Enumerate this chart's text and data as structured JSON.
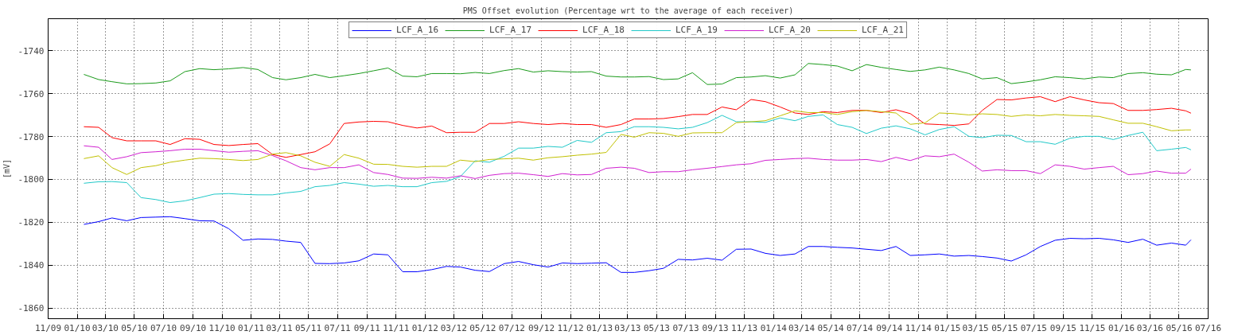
{
  "chart_data": {
    "type": "line",
    "title": "PMS Offset evolution (Percentage wrt to the average of each receiver)",
    "ylabel": "[mV]",
    "x": [
      "2010-01-15",
      "2010-02-15",
      "2010-03-15",
      "2010-04-15",
      "2010-05-15",
      "2010-06-15",
      "2010-07-15",
      "2010-08-15",
      "2010-09-15",
      "2010-10-15",
      "2010-11-15",
      "2010-12-15",
      "2011-01-15",
      "2011-02-15",
      "2011-03-15",
      "2011-04-15",
      "2011-05-15",
      "2011-06-15",
      "2011-07-15",
      "2011-08-15",
      "2011-09-15",
      "2011-10-15",
      "2011-11-15",
      "2011-12-15",
      "2012-01-15",
      "2012-02-15",
      "2012-03-15",
      "2012-04-15",
      "2012-05-15",
      "2012-06-15",
      "2012-07-15",
      "2012-08-15",
      "2012-09-15",
      "2012-10-15",
      "2012-11-15",
      "2012-12-15",
      "2013-01-15",
      "2013-02-15",
      "2013-03-15",
      "2013-04-15",
      "2013-05-15",
      "2013-06-15",
      "2013-07-15",
      "2013-08-15",
      "2013-09-15",
      "2013-10-15",
      "2013-11-15",
      "2013-12-15",
      "2014-01-15",
      "2014-02-15",
      "2014-03-15",
      "2014-04-15",
      "2014-05-15",
      "2014-06-15",
      "2014-07-15",
      "2014-08-15",
      "2014-09-15",
      "2014-10-15",
      "2014-11-15",
      "2014-12-15",
      "2015-01-15",
      "2015-02-15",
      "2015-03-15",
      "2015-04-15",
      "2015-05-15",
      "2015-06-15",
      "2015-07-15",
      "2015-08-15",
      "2015-09-15",
      "2015-10-15",
      "2015-11-15",
      "2015-12-15",
      "2016-01-15",
      "2016-02-15",
      "2016-03-15",
      "2016-04-15",
      "2016-05-15",
      "2016-05-26"
    ],
    "series": [
      {
        "name": "LCF_A_16",
        "color": "#0000ff",
        "values": [
          -1821,
          -1819.7,
          -1818,
          -1819.3,
          -1817.8,
          -1817.6,
          -1817.4,
          -1818.3,
          -1819.3,
          -1819.4,
          -1823,
          -1828.4,
          -1827.8,
          -1828,
          -1828.8,
          -1829.4,
          -1839.2,
          -1839.3,
          -1839,
          -1838,
          -1834.8,
          -1835.2,
          -1843.1,
          -1843.1,
          -1842.1,
          -1840.6,
          -1840.9,
          -1842.4,
          -1843,
          -1839.3,
          -1838.3,
          -1839.8,
          -1840.9,
          -1839,
          -1839.3,
          -1839.1,
          -1838.9,
          -1843.4,
          -1843.4,
          -1842.6,
          -1841.5,
          -1837.3,
          -1837.6,
          -1836.8,
          -1837.7,
          -1832.6,
          -1832.5,
          -1834.5,
          -1835.5,
          -1834.8,
          -1831.3,
          -1831.3,
          -1831.7,
          -1832,
          -1832.6,
          -1833.2,
          -1831.3,
          -1835.5,
          -1835.2,
          -1834.8,
          -1835.8,
          -1835.5,
          -1836,
          -1836.7,
          -1838.1,
          -1835.2,
          -1831.3,
          -1828.4,
          -1827.5,
          -1827.7,
          -1827.5,
          -1828.2,
          -1829.4,
          -1827.9,
          -1830.7,
          -1829.7,
          -1830.7,
          -1828.2
        ]
      },
      {
        "name": "LCF_A_17",
        "color": "#1a9a1a",
        "values": [
          -1751,
          -1753.4,
          -1754.4,
          -1755.4,
          -1755.3,
          -1755,
          -1754,
          -1749.7,
          -1748.3,
          -1748.8,
          -1748.4,
          -1747.8,
          -1748.7,
          -1752.5,
          -1753.5,
          -1752.5,
          -1751,
          -1752.5,
          -1751.6,
          -1750.6,
          -1749.3,
          -1748,
          -1751.8,
          -1752.1,
          -1750.6,
          -1750.6,
          -1750.7,
          -1750.1,
          -1750.6,
          -1749.2,
          -1748.3,
          -1749.9,
          -1749.3,
          -1749.7,
          -1749.9,
          -1749.7,
          -1751.8,
          -1752.2,
          -1752.2,
          -1752,
          -1753.4,
          -1753.1,
          -1750.2,
          -1755.7,
          -1755.5,
          -1752.5,
          -1752.2,
          -1751.6,
          -1752.7,
          -1751.2,
          -1745.9,
          -1746.4,
          -1747.1,
          -1749.3,
          -1746.4,
          -1747.7,
          -1748.7,
          -1749.6,
          -1748.9,
          -1747.6,
          -1748.9,
          -1750.6,
          -1753.1,
          -1752.5,
          -1755.3,
          -1754.5,
          -1753.5,
          -1752.1,
          -1752.5,
          -1753.1,
          -1752.2,
          -1752.5,
          -1750.6,
          -1750.2,
          -1750.9,
          -1751.2,
          -1748.7,
          -1748.9
        ]
      },
      {
        "name": "LCF_A_18",
        "color": "#ff0000",
        "values": [
          -1775.4,
          -1775.7,
          -1780.5,
          -1782,
          -1782,
          -1782,
          -1783.7,
          -1781,
          -1781.3,
          -1783.7,
          -1784.2,
          -1783.7,
          -1783.3,
          -1788.4,
          -1789.7,
          -1788.4,
          -1787.1,
          -1783.4,
          -1773.9,
          -1773.2,
          -1772.9,
          -1773.1,
          -1774.8,
          -1776,
          -1775.1,
          -1778.2,
          -1778,
          -1778,
          -1773.9,
          -1773.9,
          -1773.1,
          -1773.9,
          -1774.4,
          -1773.9,
          -1774.4,
          -1774.4,
          -1775.7,
          -1774.4,
          -1771.8,
          -1771.8,
          -1771.6,
          -1770.7,
          -1769.7,
          -1769.7,
          -1766.2,
          -1767.5,
          -1762.7,
          -1763.7,
          -1766.2,
          -1769,
          -1769.7,
          -1768.4,
          -1768.8,
          -1767.8,
          -1767.8,
          -1768.8,
          -1767.5,
          -1769.3,
          -1774.1,
          -1774.4,
          -1774.8,
          -1774.1,
          -1767.8,
          -1762.7,
          -1762.9,
          -1762,
          -1761.4,
          -1763.7,
          -1761.4,
          -1762.9,
          -1764.2,
          -1764.6,
          -1767.8,
          -1767.8,
          -1767.4,
          -1766.8,
          -1768,
          -1769.1
        ]
      },
      {
        "name": "LCF_A_19",
        "color": "#20c8c8",
        "values": [
          -1801.8,
          -1801.1,
          -1801,
          -1801.5,
          -1808.5,
          -1809.4,
          -1810.8,
          -1810,
          -1808.5,
          -1806.9,
          -1806.6,
          -1807,
          -1807.2,
          -1807.2,
          -1806.3,
          -1805.6,
          -1803.4,
          -1802.8,
          -1801.5,
          -1802.2,
          -1803.2,
          -1802.8,
          -1803.4,
          -1803.4,
          -1801.5,
          -1800.9,
          -1798.7,
          -1791.3,
          -1792,
          -1789.2,
          -1785.4,
          -1785.4,
          -1784.6,
          -1785,
          -1781.8,
          -1782.7,
          -1778.2,
          -1777.7,
          -1775.4,
          -1775.4,
          -1775.7,
          -1776.4,
          -1775.7,
          -1773.5,
          -1770.1,
          -1773.1,
          -1773.1,
          -1773.4,
          -1771.3,
          -1772.6,
          -1770.6,
          -1769.9,
          -1774.4,
          -1775.7,
          -1778.6,
          -1776.1,
          -1775,
          -1776.4,
          -1779.2,
          -1776.7,
          -1775.4,
          -1779.9,
          -1780.5,
          -1779.4,
          -1779.5,
          -1782.4,
          -1782.4,
          -1783.6,
          -1780.8,
          -1779.9,
          -1779.9,
          -1781.4,
          -1779.5,
          -1778,
          -1786.6,
          -1785.9,
          -1785.1,
          -1786.2
        ]
      },
      {
        "name": "LCF_A_20",
        "color": "#d020d0",
        "values": [
          -1784.3,
          -1785,
          -1790.7,
          -1789.4,
          -1787.5,
          -1787.1,
          -1786.6,
          -1785.9,
          -1785.9,
          -1786.6,
          -1787.3,
          -1786.9,
          -1786.6,
          -1788.9,
          -1791.3,
          -1794.5,
          -1795.5,
          -1794.5,
          -1794.5,
          -1793.2,
          -1796.8,
          -1797.7,
          -1799.4,
          -1799.5,
          -1799,
          -1799.4,
          -1798.3,
          -1799.6,
          -1798.1,
          -1797.3,
          -1797.1,
          -1797.8,
          -1798.6,
          -1797.3,
          -1797.9,
          -1797.7,
          -1794.8,
          -1794.3,
          -1794.8,
          -1796.8,
          -1796.4,
          -1796.4,
          -1795.5,
          -1794.8,
          -1794,
          -1793.2,
          -1792.7,
          -1791.1,
          -1790.7,
          -1790.3,
          -1790.1,
          -1790.7,
          -1791,
          -1791,
          -1790.7,
          -1791.7,
          -1789.7,
          -1791.2,
          -1789,
          -1789.4,
          -1788.2,
          -1792,
          -1796.1,
          -1795.5,
          -1795.9,
          -1795.9,
          -1797.3,
          -1793.2,
          -1793.9,
          -1795.2,
          -1794.5,
          -1793.9,
          -1797.8,
          -1797.3,
          -1796.1,
          -1797.1,
          -1797.1,
          -1795.2
        ]
      },
      {
        "name": "LCF_A_21",
        "color": "#c0c000",
        "values": [
          -1790.3,
          -1789,
          -1794.5,
          -1797.7,
          -1794.5,
          -1793.6,
          -1792,
          -1791,
          -1790.1,
          -1790.3,
          -1790.7,
          -1791.2,
          -1790.7,
          -1788.2,
          -1787.5,
          -1789,
          -1792,
          -1793.9,
          -1788.4,
          -1790.1,
          -1792.9,
          -1793,
          -1793.9,
          -1794.3,
          -1793.9,
          -1793.9,
          -1791,
          -1791.7,
          -1790.7,
          -1790.4,
          -1790.1,
          -1791,
          -1789.9,
          -1789.4,
          -1788.7,
          -1788.2,
          -1787.4,
          -1779,
          -1780.3,
          -1778.2,
          -1778.5,
          -1779.9,
          -1778.3,
          -1778.2,
          -1778.2,
          -1773.5,
          -1773.1,
          -1772.6,
          -1770.3,
          -1768,
          -1768.8,
          -1768.8,
          -1769.7,
          -1768.4,
          -1767.8,
          -1768.4,
          -1769,
          -1774.3,
          -1773.6,
          -1769,
          -1769.3,
          -1769.9,
          -1769.4,
          -1769.7,
          -1770.6,
          -1769.9,
          -1770.3,
          -1769.7,
          -1770.1,
          -1770.3,
          -1770.6,
          -1772.2,
          -1773.8,
          -1773.8,
          -1775.4,
          -1777.3,
          -1776.9,
          -1776.9
        ]
      }
    ],
    "xlim": [
      "2009-11-01",
      "2016-07-01"
    ],
    "xticks": [
      {
        "value": "2009-11-01",
        "label": "11/09"
      },
      {
        "value": "2010-01-01",
        "label": "01/10"
      },
      {
        "value": "2010-03-01",
        "label": "03/10"
      },
      {
        "value": "2010-05-01",
        "label": "05/10"
      },
      {
        "value": "2010-07-01",
        "label": "07/10"
      },
      {
        "value": "2010-09-01",
        "label": "09/10"
      },
      {
        "value": "2010-11-01",
        "label": "11/10"
      },
      {
        "value": "2011-01-01",
        "label": "01/11"
      },
      {
        "value": "2011-03-01",
        "label": "03/11"
      },
      {
        "value": "2011-05-01",
        "label": "05/11"
      },
      {
        "value": "2011-07-01",
        "label": "07/11"
      },
      {
        "value": "2011-09-01",
        "label": "09/11"
      },
      {
        "value": "2011-11-01",
        "label": "11/11"
      },
      {
        "value": "2012-01-01",
        "label": "01/12"
      },
      {
        "value": "2012-03-01",
        "label": "03/12"
      },
      {
        "value": "2012-05-01",
        "label": "05/12"
      },
      {
        "value": "2012-07-01",
        "label": "07/12"
      },
      {
        "value": "2012-09-01",
        "label": "09/12"
      },
      {
        "value": "2012-11-01",
        "label": "11/12"
      },
      {
        "value": "2013-01-01",
        "label": "01/13"
      },
      {
        "value": "2013-03-01",
        "label": "03/13"
      },
      {
        "value": "2013-05-01",
        "label": "05/13"
      },
      {
        "value": "2013-07-01",
        "label": "07/13"
      },
      {
        "value": "2013-09-01",
        "label": "09/13"
      },
      {
        "value": "2013-11-01",
        "label": "11/13"
      },
      {
        "value": "2014-01-01",
        "label": "01/14"
      },
      {
        "value": "2014-03-01",
        "label": "03/14"
      },
      {
        "value": "2014-05-01",
        "label": "05/14"
      },
      {
        "value": "2014-07-01",
        "label": "07/14"
      },
      {
        "value": "2014-09-01",
        "label": "09/14"
      },
      {
        "value": "2014-11-01",
        "label": "11/14"
      },
      {
        "value": "2015-01-01",
        "label": "01/15"
      },
      {
        "value": "2015-03-01",
        "label": "03/15"
      },
      {
        "value": "2015-05-01",
        "label": "05/15"
      },
      {
        "value": "2015-07-01",
        "label": "07/15"
      },
      {
        "value": "2015-09-01",
        "label": "09/15"
      },
      {
        "value": "2015-11-01",
        "label": "11/15"
      },
      {
        "value": "2016-01-01",
        "label": "01/16"
      },
      {
        "value": "2016-03-01",
        "label": "03/16"
      },
      {
        "value": "2016-05-01",
        "label": "05/16"
      },
      {
        "value": "2016-07-01",
        "label": "07/16"
      }
    ],
    "ylim": [
      -1865,
      -1725
    ],
    "yticks": [
      -1860,
      -1840,
      -1820,
      -1800,
      -1780,
      -1760,
      -1740
    ],
    "grid": true,
    "legend": "top"
  }
}
